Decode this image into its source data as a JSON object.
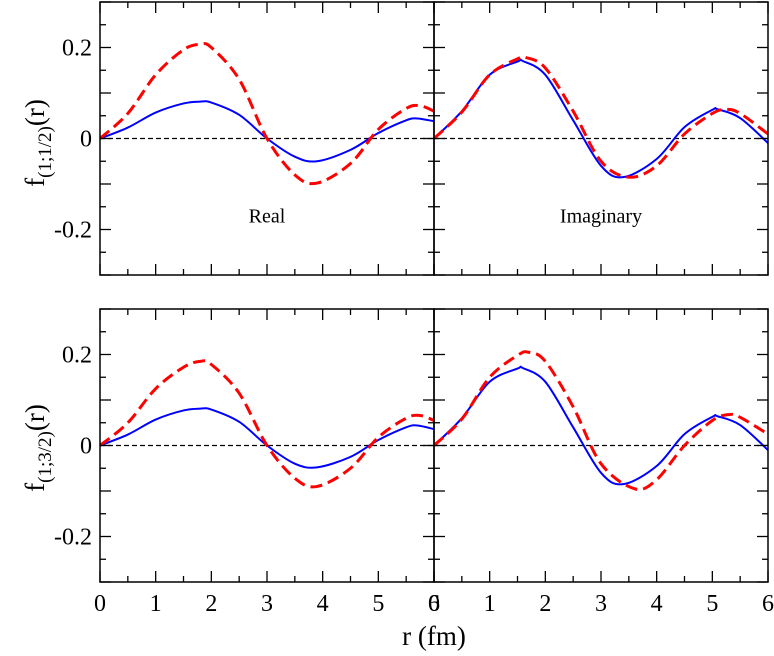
{
  "chart_data": [
    {
      "type": "line",
      "panel": "top-left",
      "ylabel": "f(1;1/2)(r)",
      "ylabel_main": "f",
      "ylabel_sub": "(1;1/2)",
      "ylabel_tail": "(r)",
      "annotation": "Real",
      "xlim": [
        0,
        6
      ],
      "ylim": [
        -0.3,
        0.3
      ],
      "series": [
        {
          "name": "solid-blue",
          "color": "#0000ff",
          "style": "solid",
          "x": [
            0,
            0.5,
            1.0,
            1.5,
            1.8,
            2.0,
            2.5,
            3.0,
            3.5,
            3.9,
            4.5,
            5.0,
            5.5,
            5.7,
            6.0
          ],
          "y": [
            0,
            0.024,
            0.057,
            0.077,
            0.081,
            0.079,
            0.052,
            0.0,
            -0.04,
            -0.05,
            -0.025,
            0.012,
            0.04,
            0.044,
            0.038
          ]
        },
        {
          "name": "dashed-red",
          "color": "#ff0000",
          "style": "dashed",
          "x": [
            0,
            0.5,
            1.0,
            1.5,
            1.8,
            2.0,
            2.5,
            3.0,
            3.5,
            3.9,
            4.5,
            5.0,
            5.5,
            5.75,
            6.0
          ],
          "y": [
            0,
            0.055,
            0.14,
            0.195,
            0.207,
            0.2,
            0.13,
            0.0,
            -0.08,
            -0.098,
            -0.055,
            0.02,
            0.066,
            0.072,
            0.06
          ]
        }
      ]
    },
    {
      "type": "line",
      "panel": "top-right",
      "annotation": "Imaginary",
      "xlim": [
        0,
        6
      ],
      "ylim": [
        -0.3,
        0.3
      ],
      "series": [
        {
          "name": "solid-blue",
          "color": "#0000ff",
          "style": "solid",
          "x": [
            0,
            0.5,
            1.0,
            1.5,
            1.6,
            2.0,
            2.5,
            3.0,
            3.4,
            4.0,
            4.5,
            5.0,
            5.1,
            5.5,
            6.0
          ],
          "y": [
            0,
            0.06,
            0.14,
            0.169,
            0.17,
            0.14,
            0.04,
            -0.06,
            -0.085,
            -0.045,
            0.025,
            0.063,
            0.064,
            0.045,
            -0.01
          ]
        },
        {
          "name": "dashed-red",
          "color": "#ff0000",
          "style": "dashed",
          "x": [
            0,
            0.5,
            1.0,
            1.5,
            1.65,
            2.0,
            2.5,
            3.0,
            3.5,
            4.0,
            4.5,
            5.0,
            5.25,
            5.5,
            6.0
          ],
          "y": [
            0,
            0.058,
            0.14,
            0.175,
            0.178,
            0.155,
            0.06,
            -0.05,
            -0.085,
            -0.06,
            0.01,
            0.055,
            0.064,
            0.055,
            0.01
          ]
        }
      ]
    },
    {
      "type": "line",
      "panel": "bottom-left",
      "ylabel": "f(1;3/2)(r)",
      "ylabel_main": "f",
      "ylabel_sub": "(1;3/2)",
      "ylabel_tail": "(r)",
      "xlim": [
        0,
        6
      ],
      "ylim": [
        -0.3,
        0.3
      ],
      "series": [
        {
          "name": "solid-blue",
          "color": "#0000ff",
          "style": "solid",
          "x": [
            0,
            0.5,
            1.0,
            1.5,
            1.8,
            2.0,
            2.5,
            3.0,
            3.5,
            3.9,
            4.5,
            5.0,
            5.5,
            5.7,
            6.0
          ],
          "y": [
            0,
            0.024,
            0.057,
            0.077,
            0.081,
            0.079,
            0.052,
            0.0,
            -0.04,
            -0.048,
            -0.025,
            0.012,
            0.04,
            0.044,
            0.036
          ]
        },
        {
          "name": "dashed-red",
          "color": "#ff0000",
          "style": "dashed",
          "x": [
            0,
            0.5,
            1.0,
            1.5,
            1.8,
            2.0,
            2.5,
            3.0,
            3.5,
            3.9,
            4.5,
            5.0,
            5.5,
            5.75,
            6.0
          ],
          "y": [
            0,
            0.05,
            0.125,
            0.172,
            0.185,
            0.178,
            0.115,
            0.0,
            -0.072,
            -0.09,
            -0.05,
            0.018,
            0.06,
            0.066,
            0.055
          ]
        }
      ]
    },
    {
      "type": "line",
      "panel": "bottom-right",
      "xlim": [
        0,
        6
      ],
      "ylim": [
        -0.3,
        0.3
      ],
      "series": [
        {
          "name": "solid-blue",
          "color": "#0000ff",
          "style": "solid",
          "x": [
            0,
            0.5,
            1.0,
            1.5,
            1.6,
            2.0,
            2.5,
            3.0,
            3.4,
            4.0,
            4.5,
            5.0,
            5.1,
            5.5,
            6.0
          ],
          "y": [
            0,
            0.06,
            0.14,
            0.169,
            0.17,
            0.14,
            0.04,
            -0.06,
            -0.085,
            -0.045,
            0.025,
            0.063,
            0.064,
            0.045,
            -0.01
          ]
        },
        {
          "name": "dashed-red",
          "color": "#ff0000",
          "style": "dashed",
          "x": [
            0,
            0.5,
            1.0,
            1.5,
            1.7,
            2.0,
            2.5,
            3.0,
            3.6,
            4.0,
            4.5,
            5.0,
            5.3,
            5.5,
            6.0
          ],
          "y": [
            0,
            0.058,
            0.15,
            0.198,
            0.205,
            0.185,
            0.085,
            -0.04,
            -0.095,
            -0.075,
            0.0,
            0.055,
            0.068,
            0.062,
            0.025
          ]
        }
      ]
    }
  ],
  "shared": {
    "xlabel": "r (fm)",
    "xticks": [
      "0",
      "1",
      "2",
      "3",
      "4",
      "5",
      "6"
    ],
    "yticks": [
      "-0.2",
      "0",
      "0.2"
    ],
    "ytick_values": [
      -0.2,
      0,
      0.2
    ],
    "xtick_values": [
      0,
      1,
      2,
      3,
      4,
      5,
      6
    ],
    "zero_line_color": "#000000"
  }
}
